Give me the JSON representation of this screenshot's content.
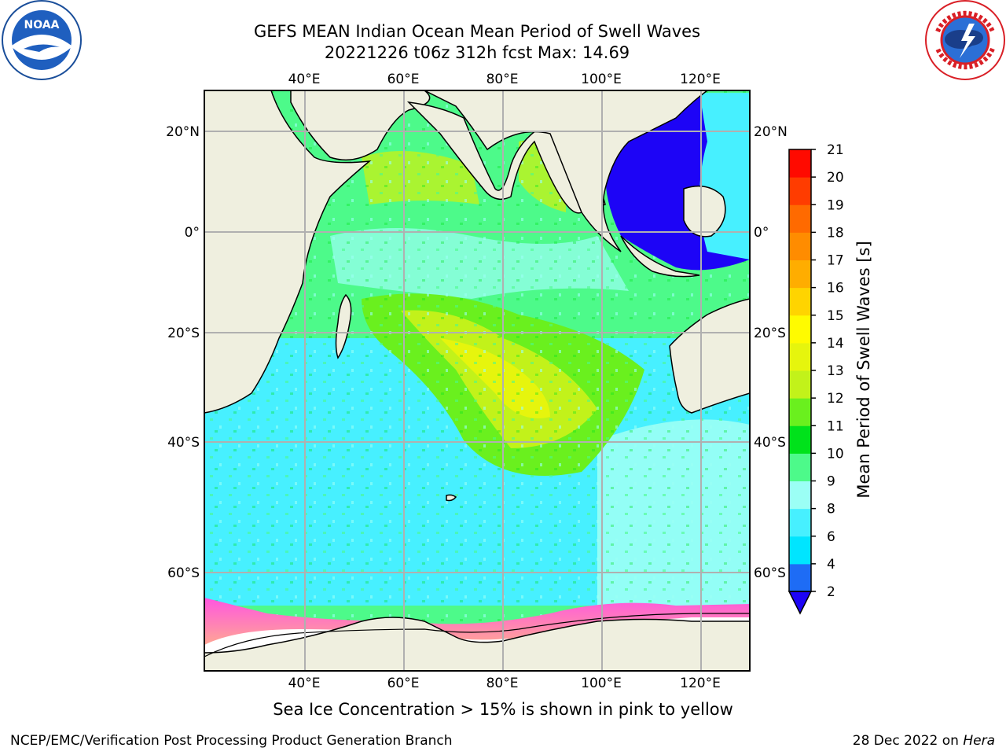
{
  "title": {
    "line1": "GEFS MEAN Indian Ocean Mean Period of Swell Waves",
    "line2": "20221226 t06z 312h fcst   Max: 14.69"
  },
  "logos": {
    "left": "noaa-logo",
    "left_text": "NOAA",
    "right": "national-weather-service-logo"
  },
  "map": {
    "lon_labels": [
      "40°E",
      "60°E",
      "80°E",
      "100°E",
      "120°E"
    ],
    "lat_labels_left": [
      "20°N",
      "0°",
      "20°S",
      "40°S",
      "60°S"
    ],
    "lat_labels_right": [
      "20°N",
      "0°",
      "20°S",
      "40°S",
      "60°S"
    ],
    "colors": {
      "land": "#efefdf",
      "ice_shelf": "#ffffff",
      "grid": "#b0b0b0",
      "coast": "#000000"
    }
  },
  "colorbar": {
    "title": "Mean Period of Swell Waves [s]",
    "ticks": [
      "2",
      "4",
      "6",
      "8",
      "9",
      "10",
      "11",
      "12",
      "13",
      "14",
      "15",
      "16",
      "17",
      "18",
      "19",
      "20",
      "21"
    ],
    "colors": [
      "#1e6cf5",
      "#00e5ff",
      "#47f0ff",
      "#9bfff5",
      "#4dfa8a",
      "#00e21b",
      "#6af01e",
      "#c2f21a",
      "#e6f50d",
      "#fffb00",
      "#ffd400",
      "#ffad00",
      "#ff8c00",
      "#ff6a00",
      "#ff3c00",
      "#ff0a00"
    ],
    "under_color": "#1d04f6"
  },
  "footer": {
    "note": "Sea Ice Concentration > 15% is shown in pink to yellow",
    "left": "NCEP/EMC/Verification Post Processing Product Generation Branch",
    "right_date": "28 Dec 2022 on ",
    "right_host": "Hera"
  }
}
